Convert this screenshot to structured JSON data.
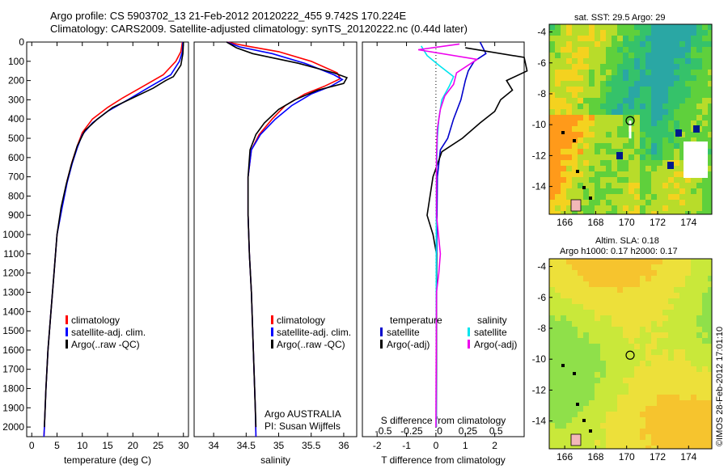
{
  "header": {
    "line1": "Argo profile: CS 5903702_13 21-Feb-2012 20120222_455 9.742S 170.224E",
    "line2": "Climatology: CARS2009. Satellite-adjusted climatology: synTS_20120222.nc (0.44d later)"
  },
  "maps": {
    "sst_title": "sat. SST: 29.5 Argo: 29",
    "sla_title1": "Altim. SLA: 0.18",
    "sla_title2": "Argo h1000: 0.17 h2000: 0.17",
    "xticks": [
      "166",
      "168",
      "170",
      "172",
      "174"
    ],
    "yticks": [
      "-4",
      "-6",
      "-8",
      "-10",
      "-12",
      "-14"
    ],
    "argo_position": {
      "lon": 170.224,
      "lat": -9.742
    }
  },
  "footer_stamp": "©IMOS 28-Feb-2012 17:01:10",
  "annotations": {
    "argo_country": "Argo AUSTRALIA",
    "pi": "PI: Susan Wijffels"
  },
  "colors": {
    "climatology": "#ff0000",
    "satellite": "#0000ff",
    "argo": "#000000",
    "temp_diff_sat": "#0000cc",
    "sal_diff_sat": "#00e5ee",
    "sal_diff_argo": "#ee00ee"
  },
  "chart_data": [
    {
      "type": "line",
      "xlabel": "temperature (deg C)",
      "ylabel": "",
      "xlim": [
        -1,
        31
      ],
      "ylim": [
        2050,
        0
      ],
      "xticks": [
        0,
        5,
        10,
        15,
        20,
        25,
        30
      ],
      "yticks": [
        0,
        100,
        200,
        300,
        400,
        500,
        600,
        700,
        800,
        900,
        1000,
        1100,
        1200,
        1300,
        1400,
        1500,
        1600,
        1700,
        1800,
        1900,
        2000
      ],
      "legend": [
        "climatology",
        "satellite-adj. clim.",
        "Argo(..raw -QC)"
      ],
      "series": [
        {
          "name": "climatology",
          "color": "#ff0000",
          "points": [
            [
              29.8,
              0
            ],
            [
              29.5,
              50
            ],
            [
              28.5,
              100
            ],
            [
              26,
              170
            ],
            [
              22,
              230
            ],
            [
              18,
              290
            ],
            [
              15,
              340
            ],
            [
              12,
              400
            ],
            [
              10,
              470
            ],
            [
              9,
              540
            ],
            [
              8,
              620
            ],
            [
              7,
              720
            ],
            [
              6,
              850
            ],
            [
              5,
              1000
            ],
            [
              4.4,
              1200
            ],
            [
              3.8,
              1400
            ],
            [
              3.2,
              1600
            ],
            [
              2.8,
              1800
            ],
            [
              2.5,
              2000
            ],
            [
              2.4,
              2050
            ]
          ]
        },
        {
          "name": "satellite-adj. clim.",
          "color": "#0000ff",
          "points": [
            [
              29.9,
              0
            ],
            [
              29.8,
              50
            ],
            [
              29.2,
              100
            ],
            [
              27.5,
              170
            ],
            [
              23.5,
              230
            ],
            [
              19,
              300
            ],
            [
              15,
              360
            ],
            [
              12,
              420
            ],
            [
              10,
              480
            ],
            [
              9,
              550
            ],
            [
              8,
              630
            ],
            [
              7,
              730
            ],
            [
              6,
              860
            ],
            [
              5,
              1000
            ],
            [
              4.4,
              1200
            ],
            [
              3.8,
              1400
            ],
            [
              3.2,
              1600
            ],
            [
              2.8,
              1800
            ],
            [
              2.5,
              2000
            ],
            [
              2.4,
              2050
            ]
          ]
        },
        {
          "name": "Argo(..raw -QC)",
          "color": "#000000",
          "points": [
            [
              30,
              0
            ],
            [
              29.9,
              60
            ],
            [
              29.5,
              120
            ],
            [
              28,
              180
            ],
            [
              26.5,
              200
            ],
            [
              24,
              240
            ],
            [
              20,
              290
            ],
            [
              16,
              340
            ],
            [
              13,
              400
            ],
            [
              10.5,
              460
            ],
            [
              9,
              540
            ],
            [
              7.8,
              640
            ],
            [
              6.8,
              740
            ],
            [
              5.8,
              860
            ],
            [
              5,
              1000
            ],
            [
              4.4,
              1200
            ],
            [
              3.8,
              1400
            ],
            [
              3.2,
              1600
            ],
            [
              2.8,
              1800
            ],
            [
              2.5,
              2000
            ]
          ]
        }
      ]
    },
    {
      "type": "line",
      "xlabel": "salinity",
      "ylabel": "",
      "xlim": [
        33.7,
        36.2
      ],
      "ylim": [
        2050,
        0
      ],
      "xticks": [
        34,
        34.5,
        35,
        35.5,
        36
      ],
      "legend": [
        "climatology",
        "satellite-adj. clim.",
        "Argo(..raw -QC)"
      ],
      "series": [
        {
          "name": "climatology",
          "color": "#ff0000",
          "points": [
            [
              34.2,
              0
            ],
            [
              34.5,
              20
            ],
            [
              35,
              50
            ],
            [
              35.5,
              100
            ],
            [
              35.9,
              160
            ],
            [
              35.95,
              190
            ],
            [
              35.7,
              230
            ],
            [
              35.4,
              270
            ],
            [
              35.1,
              330
            ],
            [
              34.9,
              400
            ],
            [
              34.7,
              480
            ],
            [
              34.58,
              560
            ],
            [
              34.53,
              700
            ],
            [
              34.53,
              900
            ],
            [
              34.55,
              1100
            ],
            [
              34.58,
              1300
            ],
            [
              34.6,
              1500
            ],
            [
              34.62,
              1700
            ],
            [
              34.64,
              1900
            ],
            [
              34.65,
              2050
            ]
          ]
        },
        {
          "name": "satellite-adj. clim.",
          "color": "#0000ff",
          "points": [
            [
              34.2,
              0
            ],
            [
              34.4,
              25
            ],
            [
              34.9,
              60
            ],
            [
              35.4,
              110
            ],
            [
              35.85,
              170
            ],
            [
              35.98,
              195
            ],
            [
              35.8,
              230
            ],
            [
              35.5,
              270
            ],
            [
              35.2,
              330
            ],
            [
              34.95,
              400
            ],
            [
              34.72,
              480
            ],
            [
              34.58,
              560
            ],
            [
              34.53,
              700
            ],
            [
              34.53,
              900
            ],
            [
              34.55,
              1100
            ],
            [
              34.58,
              1300
            ],
            [
              34.6,
              1500
            ],
            [
              34.62,
              1700
            ],
            [
              34.64,
              1900
            ],
            [
              34.65,
              2050
            ]
          ]
        },
        {
          "name": "Argo(..raw -QC)",
          "color": "#000000",
          "points": [
            [
              34.2,
              0
            ],
            [
              34.35,
              30
            ],
            [
              34.6,
              60
            ],
            [
              35.3,
              110
            ],
            [
              35.85,
              160
            ],
            [
              36.05,
              185
            ],
            [
              36,
              215
            ],
            [
              35.6,
              250
            ],
            [
              35.25,
              300
            ],
            [
              35,
              350
            ],
            [
              34.78,
              420
            ],
            [
              34.65,
              480
            ],
            [
              34.56,
              560
            ],
            [
              34.53,
              700
            ],
            [
              34.53,
              900
            ],
            [
              34.55,
              1100
            ],
            [
              34.58,
              1300
            ],
            [
              34.6,
              1500
            ],
            [
              34.62,
              1700
            ],
            [
              34.64,
              1900
            ],
            [
              34.65,
              2000
            ]
          ]
        }
      ]
    },
    {
      "type": "line",
      "xlabel": "T difference from climatology",
      "title": "S difference from climatology",
      "xlim": [
        -2.5,
        3
      ],
      "ylim": [
        2050,
        0
      ],
      "xticks": [
        -2,
        -1,
        0,
        1,
        2
      ],
      "xticks_top": [
        -0.5,
        -0.25,
        0,
        0.25,
        0.5
      ],
      "legend": [
        "temperature",
        "satellite",
        "Argo(-adj)",
        "salinity",
        "satellite",
        "Argo(-adj)"
      ],
      "series": [
        {
          "name": "satellite",
          "color": "#0000cc",
          "points": [
            [
              1.5,
              0
            ],
            [
              1.7,
              60
            ],
            [
              1.3,
              100
            ],
            [
              1.1,
              150
            ],
            [
              1.0,
              200
            ],
            [
              0.85,
              300
            ],
            [
              0.6,
              400
            ],
            [
              0.4,
              500
            ],
            [
              0.15,
              560
            ],
            [
              0.05,
              700
            ],
            [
              0.03,
              1000
            ],
            [
              0.02,
              1500
            ],
            [
              0.01,
              2000
            ]
          ]
        },
        {
          "name": "Argo(-adj)",
          "color": "#000000",
          "points": [
            [
              1,
              30
            ],
            [
              3,
              80
            ],
            [
              3.1,
              150
            ],
            [
              2.4,
              200
            ],
            [
              2.6,
              250
            ],
            [
              2.2,
              300
            ],
            [
              2,
              360
            ],
            [
              1.5,
              420
            ],
            [
              0.9,
              500
            ],
            [
              0.2,
              570
            ],
            [
              -0.1,
              700
            ],
            [
              -0.3,
              900
            ],
            [
              -0.1,
              1000
            ],
            [
              0.02,
              1100
            ],
            [
              0.02,
              1500
            ],
            [
              0.01,
              2000
            ]
          ]
        },
        {
          "name": "salinity satellite",
          "color": "#00e5ee",
          "points": [
            [
              -0.5,
              20
            ],
            [
              -0.3,
              70
            ],
            [
              0.1,
              120
            ],
            [
              0.6,
              180
            ],
            [
              0.45,
              230
            ],
            [
              0.2,
              300
            ],
            [
              0.1,
              400
            ],
            [
              0.05,
              500
            ],
            [
              0.02,
              700
            ],
            [
              0.01,
              1000
            ],
            [
              0.01,
              1500
            ],
            [
              0.01,
              2000
            ]
          ]
        },
        {
          "name": "salinity Argo(-adj)",
          "color": "#ee00ee",
          "points": [
            [
              0.8,
              10
            ],
            [
              -0.6,
              40
            ],
            [
              1.4,
              90
            ],
            [
              0.7,
              160
            ],
            [
              0.6,
              220
            ],
            [
              0.3,
              280
            ],
            [
              0.15,
              350
            ],
            [
              0.05,
              450
            ],
            [
              0.02,
              600
            ],
            [
              0.02,
              900
            ],
            [
              0.15,
              1100
            ],
            [
              0.1,
              1200
            ],
            [
              0.02,
              1300
            ],
            [
              0.01,
              1600
            ],
            [
              0.0,
              2000
            ]
          ]
        }
      ]
    }
  ]
}
